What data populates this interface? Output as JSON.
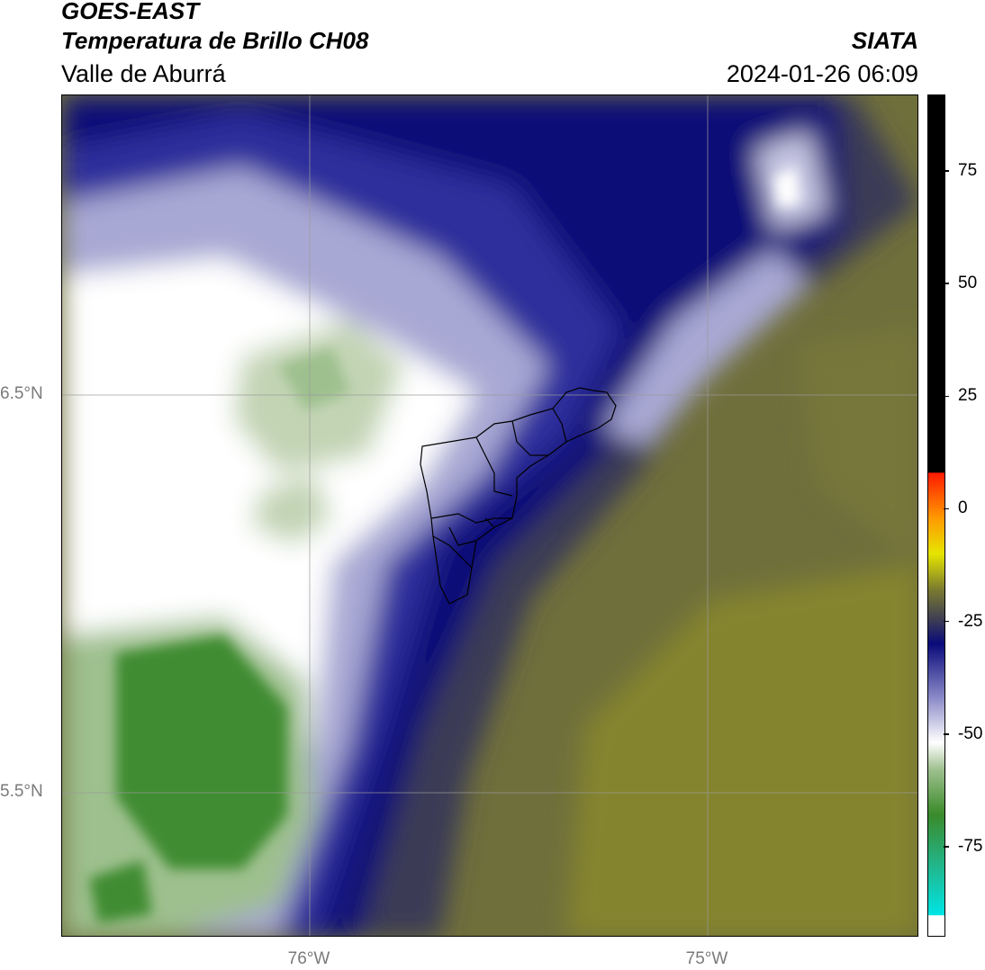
{
  "header": {
    "title_line1": "GOES-EAST",
    "title_line2": "Temperatura de Brillo CH08",
    "region": "Valle de Aburrá",
    "agency": "SIATA",
    "datetime": "2024-01-26 06:09"
  },
  "map": {
    "lat_labels": [
      "6.5°N",
      "5.5°N"
    ],
    "lon_labels": [
      "76°W",
      "75°W"
    ],
    "colors": {
      "olive": "#6f6f3c",
      "dark_olive": "#85842f",
      "slate": "#3b3b57",
      "navy": "#0a0a78",
      "blue": "#2e2e9c",
      "lavender": "#a8a8d4",
      "white": "#ffffff",
      "pale_green": "#c2d4b4",
      "green": "#3f8c32",
      "mid_green": "#6ea35c"
    }
  },
  "colorbar": {
    "ticks": [
      "75",
      "50",
      "25",
      "0",
      "-25",
      "-50",
      "-75"
    ],
    "tick_values": [
      75,
      50,
      25,
      0,
      -25,
      -50,
      -75
    ],
    "range": [
      -95,
      92
    ],
    "stops": [
      {
        "v": -95,
        "c": "#ffffff"
      },
      {
        "v": -90.5,
        "c": "#ffffff"
      },
      {
        "v": -90.4,
        "c": "#00e5e5"
      },
      {
        "v": -80,
        "c": "#20b890"
      },
      {
        "v": -68,
        "c": "#3a8a2a"
      },
      {
        "v": -58,
        "c": "#9ec08e"
      },
      {
        "v": -52,
        "c": "#ffffff"
      },
      {
        "v": -42,
        "c": "#8a8ac8"
      },
      {
        "v": -30,
        "c": "#0a0a7a"
      },
      {
        "v": -25,
        "c": "#3a3a56"
      },
      {
        "v": -18,
        "c": "#7a7a30"
      },
      {
        "v": -10,
        "c": "#e5e500"
      },
      {
        "v": -2,
        "c": "#ff9900"
      },
      {
        "v": 8,
        "c": "#ff1a00"
      },
      {
        "v": 8.1,
        "c": "#000000"
      },
      {
        "v": 92,
        "c": "#000000"
      }
    ]
  }
}
